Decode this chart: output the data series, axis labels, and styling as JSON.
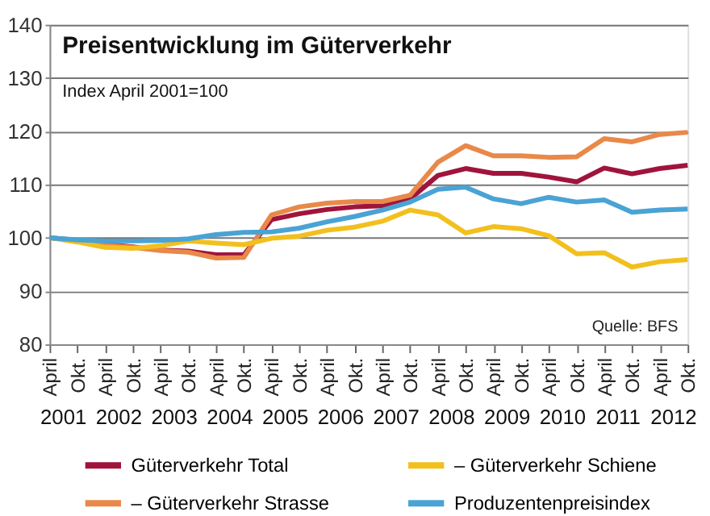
{
  "chart_data": {
    "type": "line",
    "title": "Preisentwicklung im Güterverkehr",
    "subtitle": "Index April 2001=100",
    "x": [
      "2001-04",
      "2001-10",
      "2002-04",
      "2002-10",
      "2003-04",
      "2003-10",
      "2004-04",
      "2004-10",
      "2005-04",
      "2005-10",
      "2006-04",
      "2006-10",
      "2007-04",
      "2007-10",
      "2008-04",
      "2008-10",
      "2009-04",
      "2009-10",
      "2010-04",
      "2010-10",
      "2011-04",
      "2011-10",
      "2012-04",
      "2012-10"
    ],
    "series": [
      {
        "name": "Güterverkehr Total",
        "color": "#a0143c",
        "values": [
          100,
          99.5,
          98.8,
          98.3,
          97.7,
          97.5,
          96.8,
          96.8,
          103.4,
          104.5,
          105.3,
          105.8,
          106.0,
          107.3,
          111.7,
          113.0,
          112.1,
          112.1,
          111.4,
          110.5,
          113.1,
          112.0,
          113.0,
          113.6
        ]
      },
      {
        "name": "– Güterverkehr Strasse",
        "color": "#e8894a",
        "values": [
          100,
          99.5,
          98.6,
          98.2,
          97.6,
          97.3,
          96.2,
          96.3,
          104.3,
          105.8,
          106.5,
          106.8,
          106.8,
          108.0,
          114.2,
          117.3,
          115.4,
          115.4,
          115.1,
          115.2,
          118.6,
          118.0,
          119.4,
          119.8
        ]
      },
      {
        "name": "– Güterverkehr Schiene",
        "color": "#f2c01e",
        "values": [
          100,
          99.2,
          98.2,
          98.0,
          98.5,
          99.4,
          99.0,
          98.7,
          99.9,
          100.3,
          101.4,
          102.0,
          103.1,
          105.2,
          104.3,
          100.9,
          102.1,
          101.7,
          100.4,
          97.0,
          97.2,
          94.5,
          95.5,
          95.9
        ]
      },
      {
        "name": "Produzentenpreisindex",
        "color": "#4aa3d4",
        "values": [
          100,
          99.6,
          99.4,
          99.4,
          99.5,
          99.8,
          100.6,
          101.0,
          101.1,
          101.8,
          103.0,
          104.0,
          105.2,
          106.7,
          109.1,
          109.5,
          107.3,
          106.4,
          107.6,
          106.7,
          107.1,
          104.8,
          105.2,
          105.4
        ]
      }
    ],
    "xlim": [
      "2001-04",
      "2012-10"
    ],
    "xticks": [
      {
        "value": "2001-04",
        "label": "April"
      },
      {
        "value": "2001-10",
        "label": "Okt."
      },
      {
        "value": "2002-04",
        "label": "April"
      },
      {
        "value": "2002-10",
        "label": "Okt."
      },
      {
        "value": "2003-04",
        "label": "April"
      },
      {
        "value": "2003-10",
        "label": "Okt."
      },
      {
        "value": "2004-04",
        "label": "April"
      },
      {
        "value": "2004-10",
        "label": "Okt."
      },
      {
        "value": "2005-04",
        "label": "April"
      },
      {
        "value": "2005-10",
        "label": "Okt."
      },
      {
        "value": "2006-04",
        "label": "April"
      },
      {
        "value": "2006-10",
        "label": "Okt."
      },
      {
        "value": "2007-04",
        "label": "April"
      },
      {
        "value": "2007-10",
        "label": "Okt."
      },
      {
        "value": "2008-04",
        "label": "April"
      },
      {
        "value": "2008-10",
        "label": "Okt."
      },
      {
        "value": "2009-04",
        "label": "April"
      },
      {
        "value": "2009-10",
        "label": "Okt."
      },
      {
        "value": "2010-04",
        "label": "April"
      },
      {
        "value": "2010-10",
        "label": "Okt."
      },
      {
        "value": "2011-04",
        "label": "April"
      },
      {
        "value": "2011-10",
        "label": "Okt."
      },
      {
        "value": "2012-04",
        "label": "April"
      },
      {
        "value": "2012-10",
        "label": "Okt."
      }
    ],
    "ylim": [
      80,
      140
    ],
    "yticks": [
      80,
      90,
      100,
      110,
      120,
      130,
      140
    ],
    "grid": "y",
    "legend": "bottom",
    "marker": "none",
    "line_style": "solid",
    "annotations": [
      "Quelle: BFS",
      "2001",
      "2002",
      "2003",
      "2004",
      "2005",
      "2006",
      "2007",
      "2008",
      "2009",
      "2010",
      "2011",
      "2012"
    ]
  }
}
